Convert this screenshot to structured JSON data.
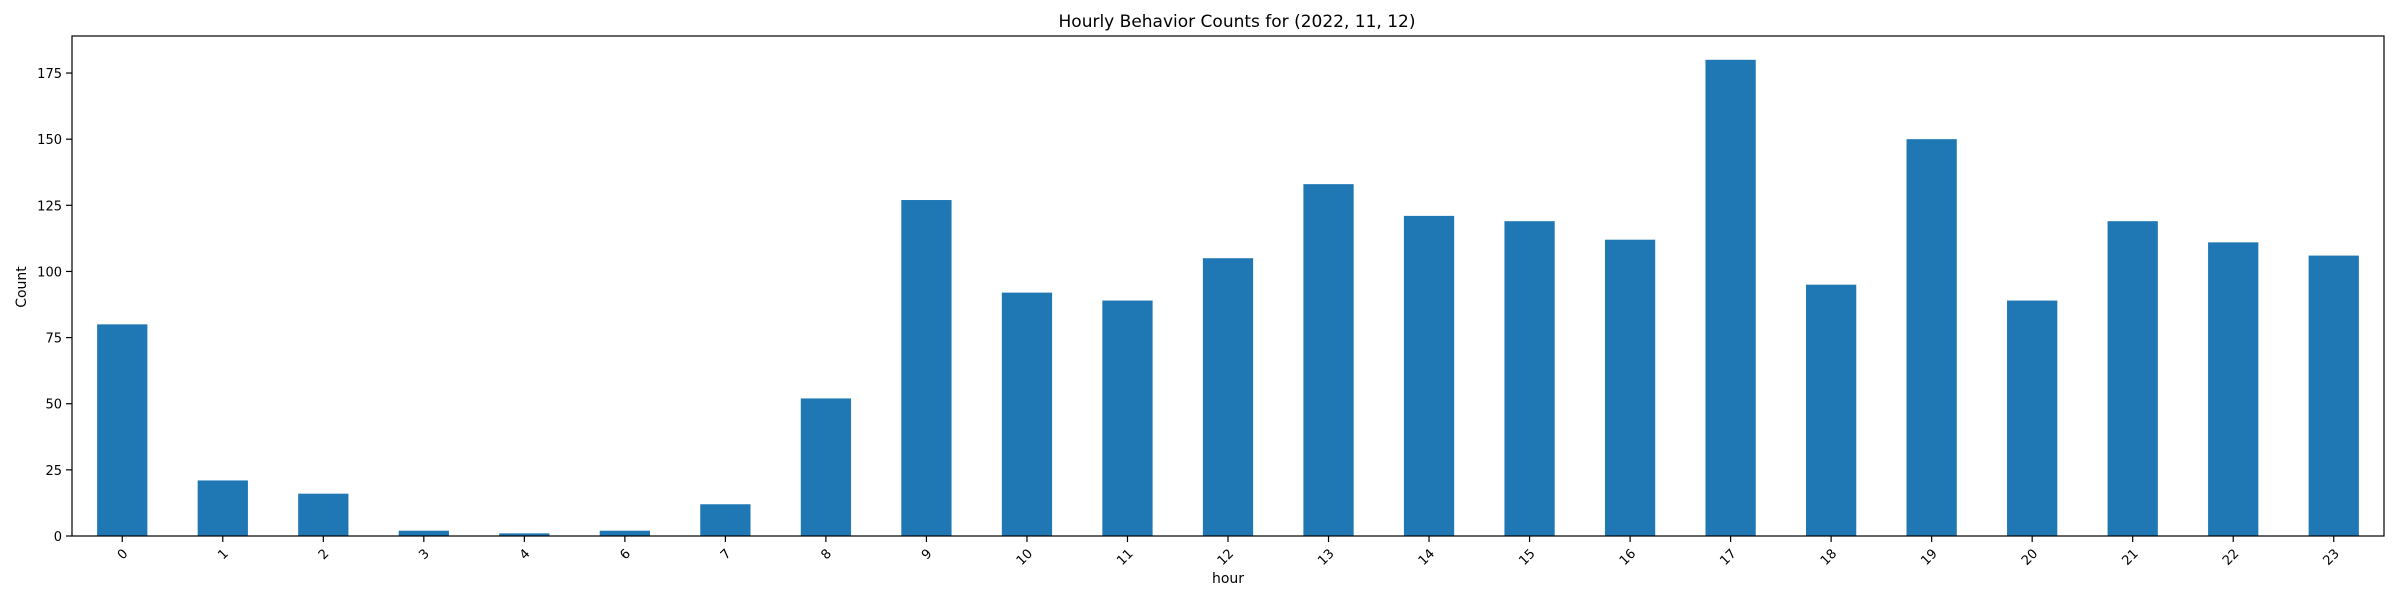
{
  "chart_data": {
    "type": "bar",
    "title": "Hourly Behavior Counts for (2022, 11, 12)",
    "xlabel": "hour",
    "ylabel": "Count",
    "categories": [
      "0",
      "1",
      "2",
      "3",
      "4",
      "6",
      "7",
      "8",
      "9",
      "10",
      "11",
      "12",
      "13",
      "14",
      "15",
      "16",
      "17",
      "18",
      "19",
      "20",
      "21",
      "22",
      "23"
    ],
    "values": [
      80,
      21,
      16,
      2,
      1,
      2,
      12,
      52,
      127,
      92,
      89,
      105,
      133,
      121,
      119,
      112,
      180,
      95,
      150,
      89,
      119,
      111,
      106
    ],
    "ylim": [
      0,
      189
    ],
    "yticks": [
      0,
      25,
      50,
      75,
      100,
      125,
      150,
      175
    ],
    "grid": false,
    "legend": "none",
    "bar_color": "#1f77b4",
    "xtick_rotation": 45
  }
}
